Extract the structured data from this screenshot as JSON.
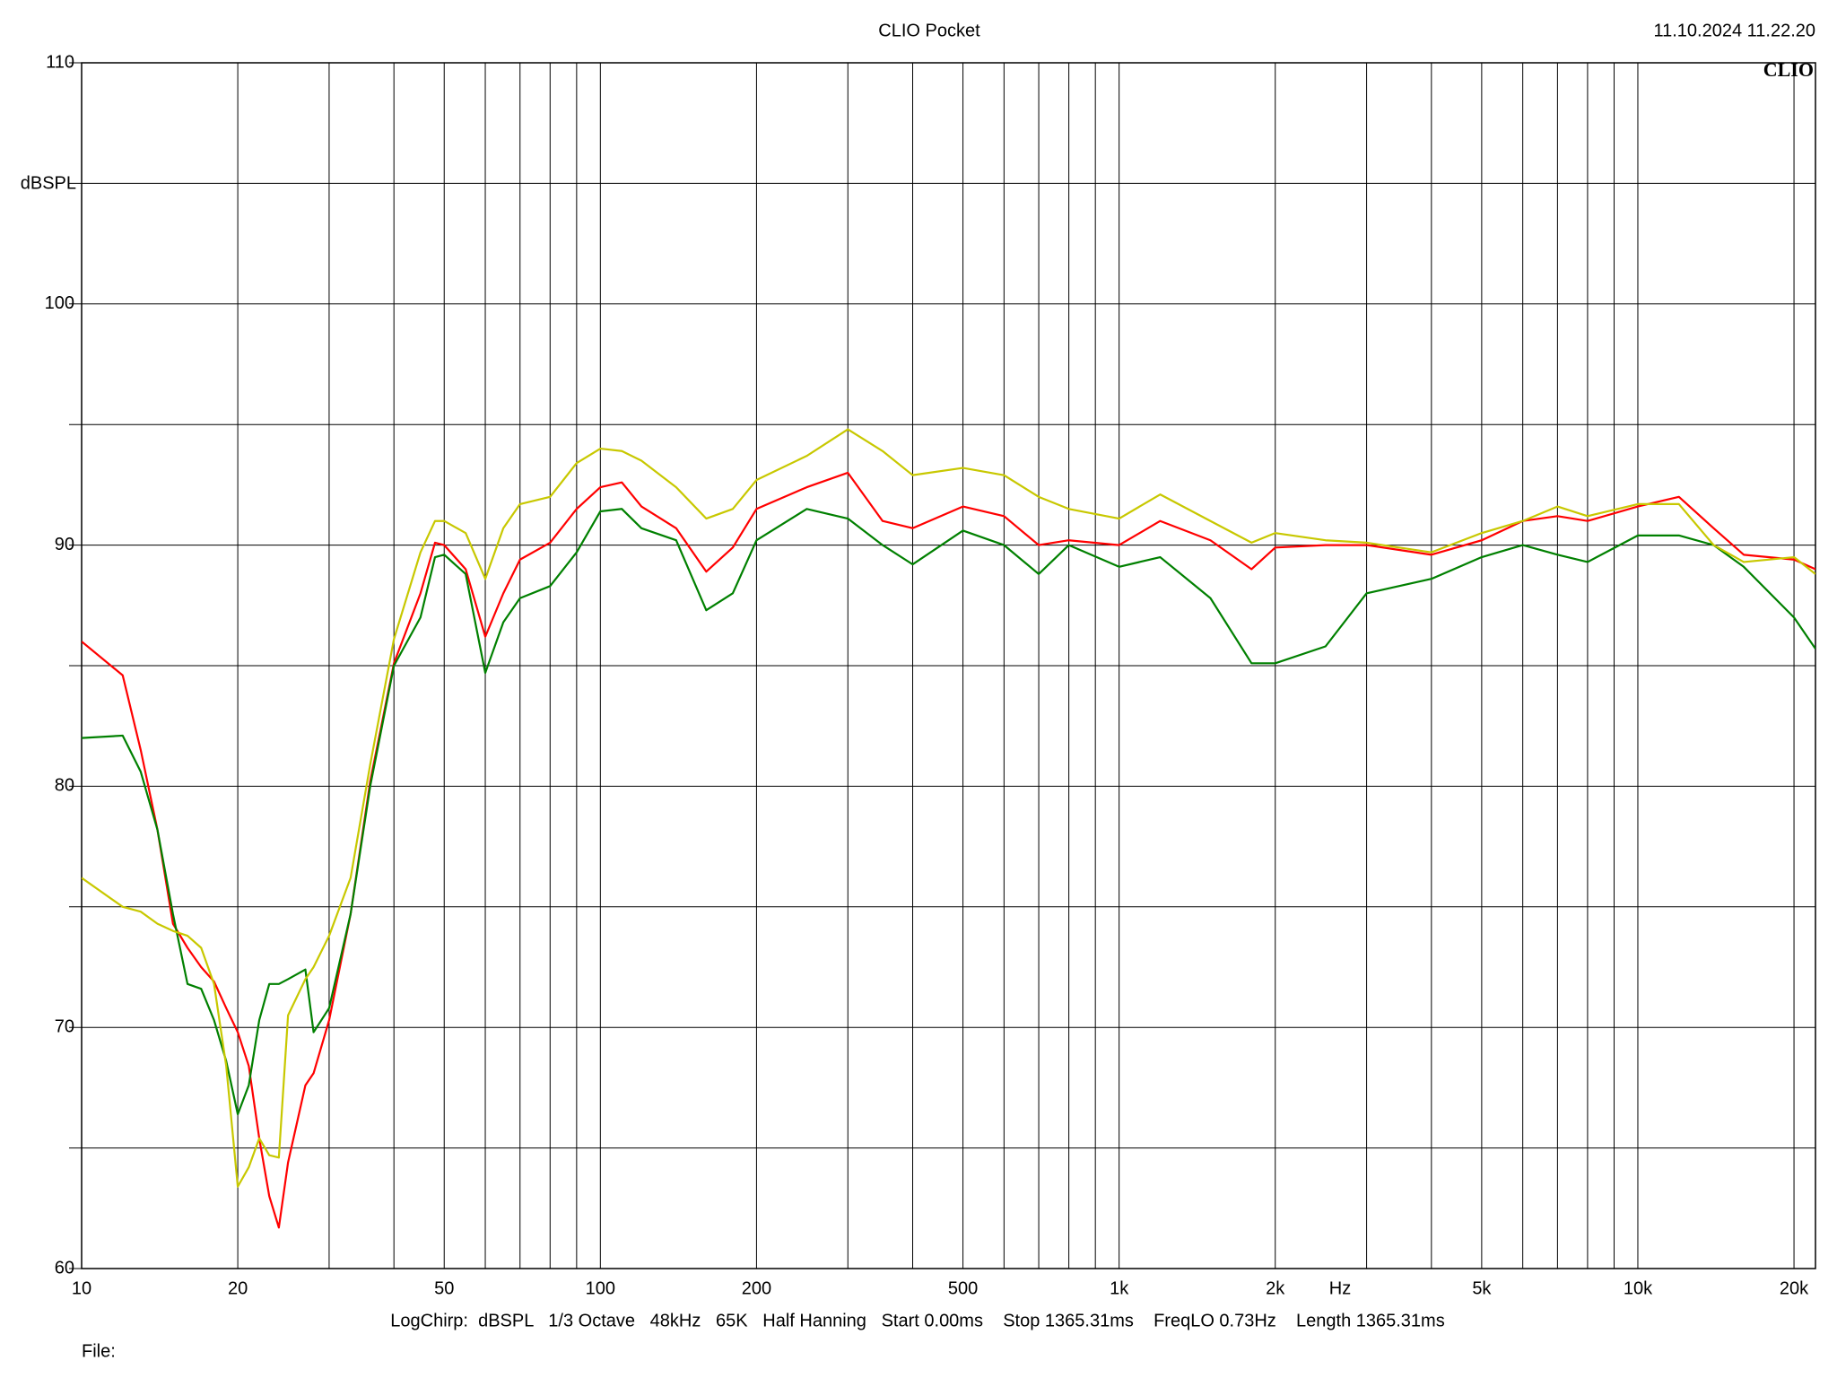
{
  "chart_data": {
    "type": "line",
    "title": "CLIO Pocket",
    "timestamp": "11.10.2024 11.22.20",
    "logo": "CLIO",
    "y_label": "dBSPL",
    "x_label": "Hz",
    "settings": "LogChirp:  dBSPL   1/3 Octave   48kHz   65K   Half Hanning   Start 0.00ms    Stop 1365.31ms    FreqLO 0.73Hz    Length 1365.31ms",
    "file_label": "File:",
    "x_log": true,
    "grid": true,
    "xlim": [
      10,
      22000
    ],
    "ylim": [
      60,
      110
    ],
    "xticks": [
      10,
      20,
      50,
      100,
      200,
      500,
      {
        "value": 1000,
        "label": "1k"
      },
      {
        "value": 2000,
        "label": "2k"
      },
      {
        "value": 5000,
        "label": "5k"
      },
      {
        "value": 10000,
        "label": "10k"
      },
      {
        "value": 20000,
        "label": "20k"
      }
    ],
    "xminor": [
      30,
      40,
      60,
      70,
      80,
      90,
      300,
      400,
      600,
      700,
      800,
      900,
      3000,
      4000,
      6000,
      7000,
      8000,
      9000
    ],
    "yticks": [
      60,
      70,
      80,
      90,
      100,
      110
    ],
    "yminor": [
      65,
      75,
      85,
      95,
      105
    ],
    "x": [
      10,
      12,
      13,
      14,
      15,
      16,
      17,
      18,
      19,
      20,
      21,
      22,
      23,
      24,
      25,
      27,
      28,
      30,
      33,
      36,
      40,
      45,
      48,
      50,
      55,
      60,
      65,
      70,
      80,
      90,
      100,
      110,
      120,
      140,
      160,
      180,
      200,
      250,
      300,
      350,
      400,
      500,
      600,
      700,
      800,
      1000,
      1200,
      1500,
      1800,
      2000,
      2500,
      3000,
      4000,
      5000,
      6000,
      7000,
      8000,
      10000,
      12000,
      14000,
      16000,
      20000,
      22000
    ],
    "series": [
      {
        "color": "#ff0000",
        "values": [
          86,
          84.6,
          81.5,
          78.2,
          74.3,
          73.3,
          72.5,
          71.9,
          70.8,
          69.8,
          68.4,
          65.4,
          63,
          61.7,
          64.4,
          67.6,
          68.1,
          70.3,
          74.7,
          80.2,
          85.1,
          88,
          90.1,
          90,
          89,
          86.2,
          88,
          89.4,
          90.1,
          91.5,
          92.4,
          92.6,
          91.6,
          90.7,
          88.9,
          89.9,
          91.5,
          92.4,
          93,
          91,
          90.7,
          91.6,
          91.2,
          90,
          90.2,
          90,
          91,
          90.2,
          89,
          89.9,
          90,
          90,
          89.6,
          90.2,
          91,
          91.2,
          91,
          91.6,
          92,
          90.7,
          89.6,
          89.4,
          89
        ]
      },
      {
        "color": "#008000",
        "values": [
          82,
          82.1,
          80.6,
          78.2,
          74.7,
          71.8,
          71.6,
          70.3,
          68.6,
          66.4,
          67.6,
          70.3,
          71.8,
          71.8,
          72,
          72.4,
          69.8,
          70.8,
          74.7,
          80,
          85,
          87,
          89.5,
          89.6,
          88.8,
          84.7,
          86.8,
          87.8,
          88.3,
          89.7,
          91.4,
          91.5,
          90.7,
          90.2,
          87.3,
          88,
          90.2,
          91.5,
          91.1,
          90,
          89.2,
          90.6,
          90,
          88.8,
          90,
          89.1,
          89.5,
          87.8,
          85.1,
          85.1,
          85.8,
          88,
          88.6,
          89.5,
          90,
          89.6,
          89.3,
          90.4,
          90.4,
          90,
          89.1,
          87,
          85.7
        ]
      },
      {
        "color": "#c8c800",
        "values": [
          76.2,
          75,
          74.8,
          74.3,
          74,
          73.8,
          73.3,
          71.8,
          68.4,
          63.4,
          64.2,
          65.4,
          64.7,
          64.6,
          70.5,
          72,
          72.5,
          73.8,
          76.2,
          80.9,
          86.1,
          89.7,
          91,
          91,
          90.5,
          88.6,
          90.7,
          91.7,
          92,
          93.4,
          94,
          93.9,
          93.5,
          92.4,
          91.1,
          91.5,
          92.7,
          93.7,
          94.8,
          93.9,
          92.9,
          93.2,
          92.9,
          92,
          91.5,
          91.1,
          92.1,
          91,
          90.1,
          90.5,
          90.2,
          90.1,
          89.7,
          90.5,
          91,
          91.6,
          91.2,
          91.7,
          91.7,
          90,
          89.3,
          89.5,
          88.8
        ]
      }
    ]
  }
}
